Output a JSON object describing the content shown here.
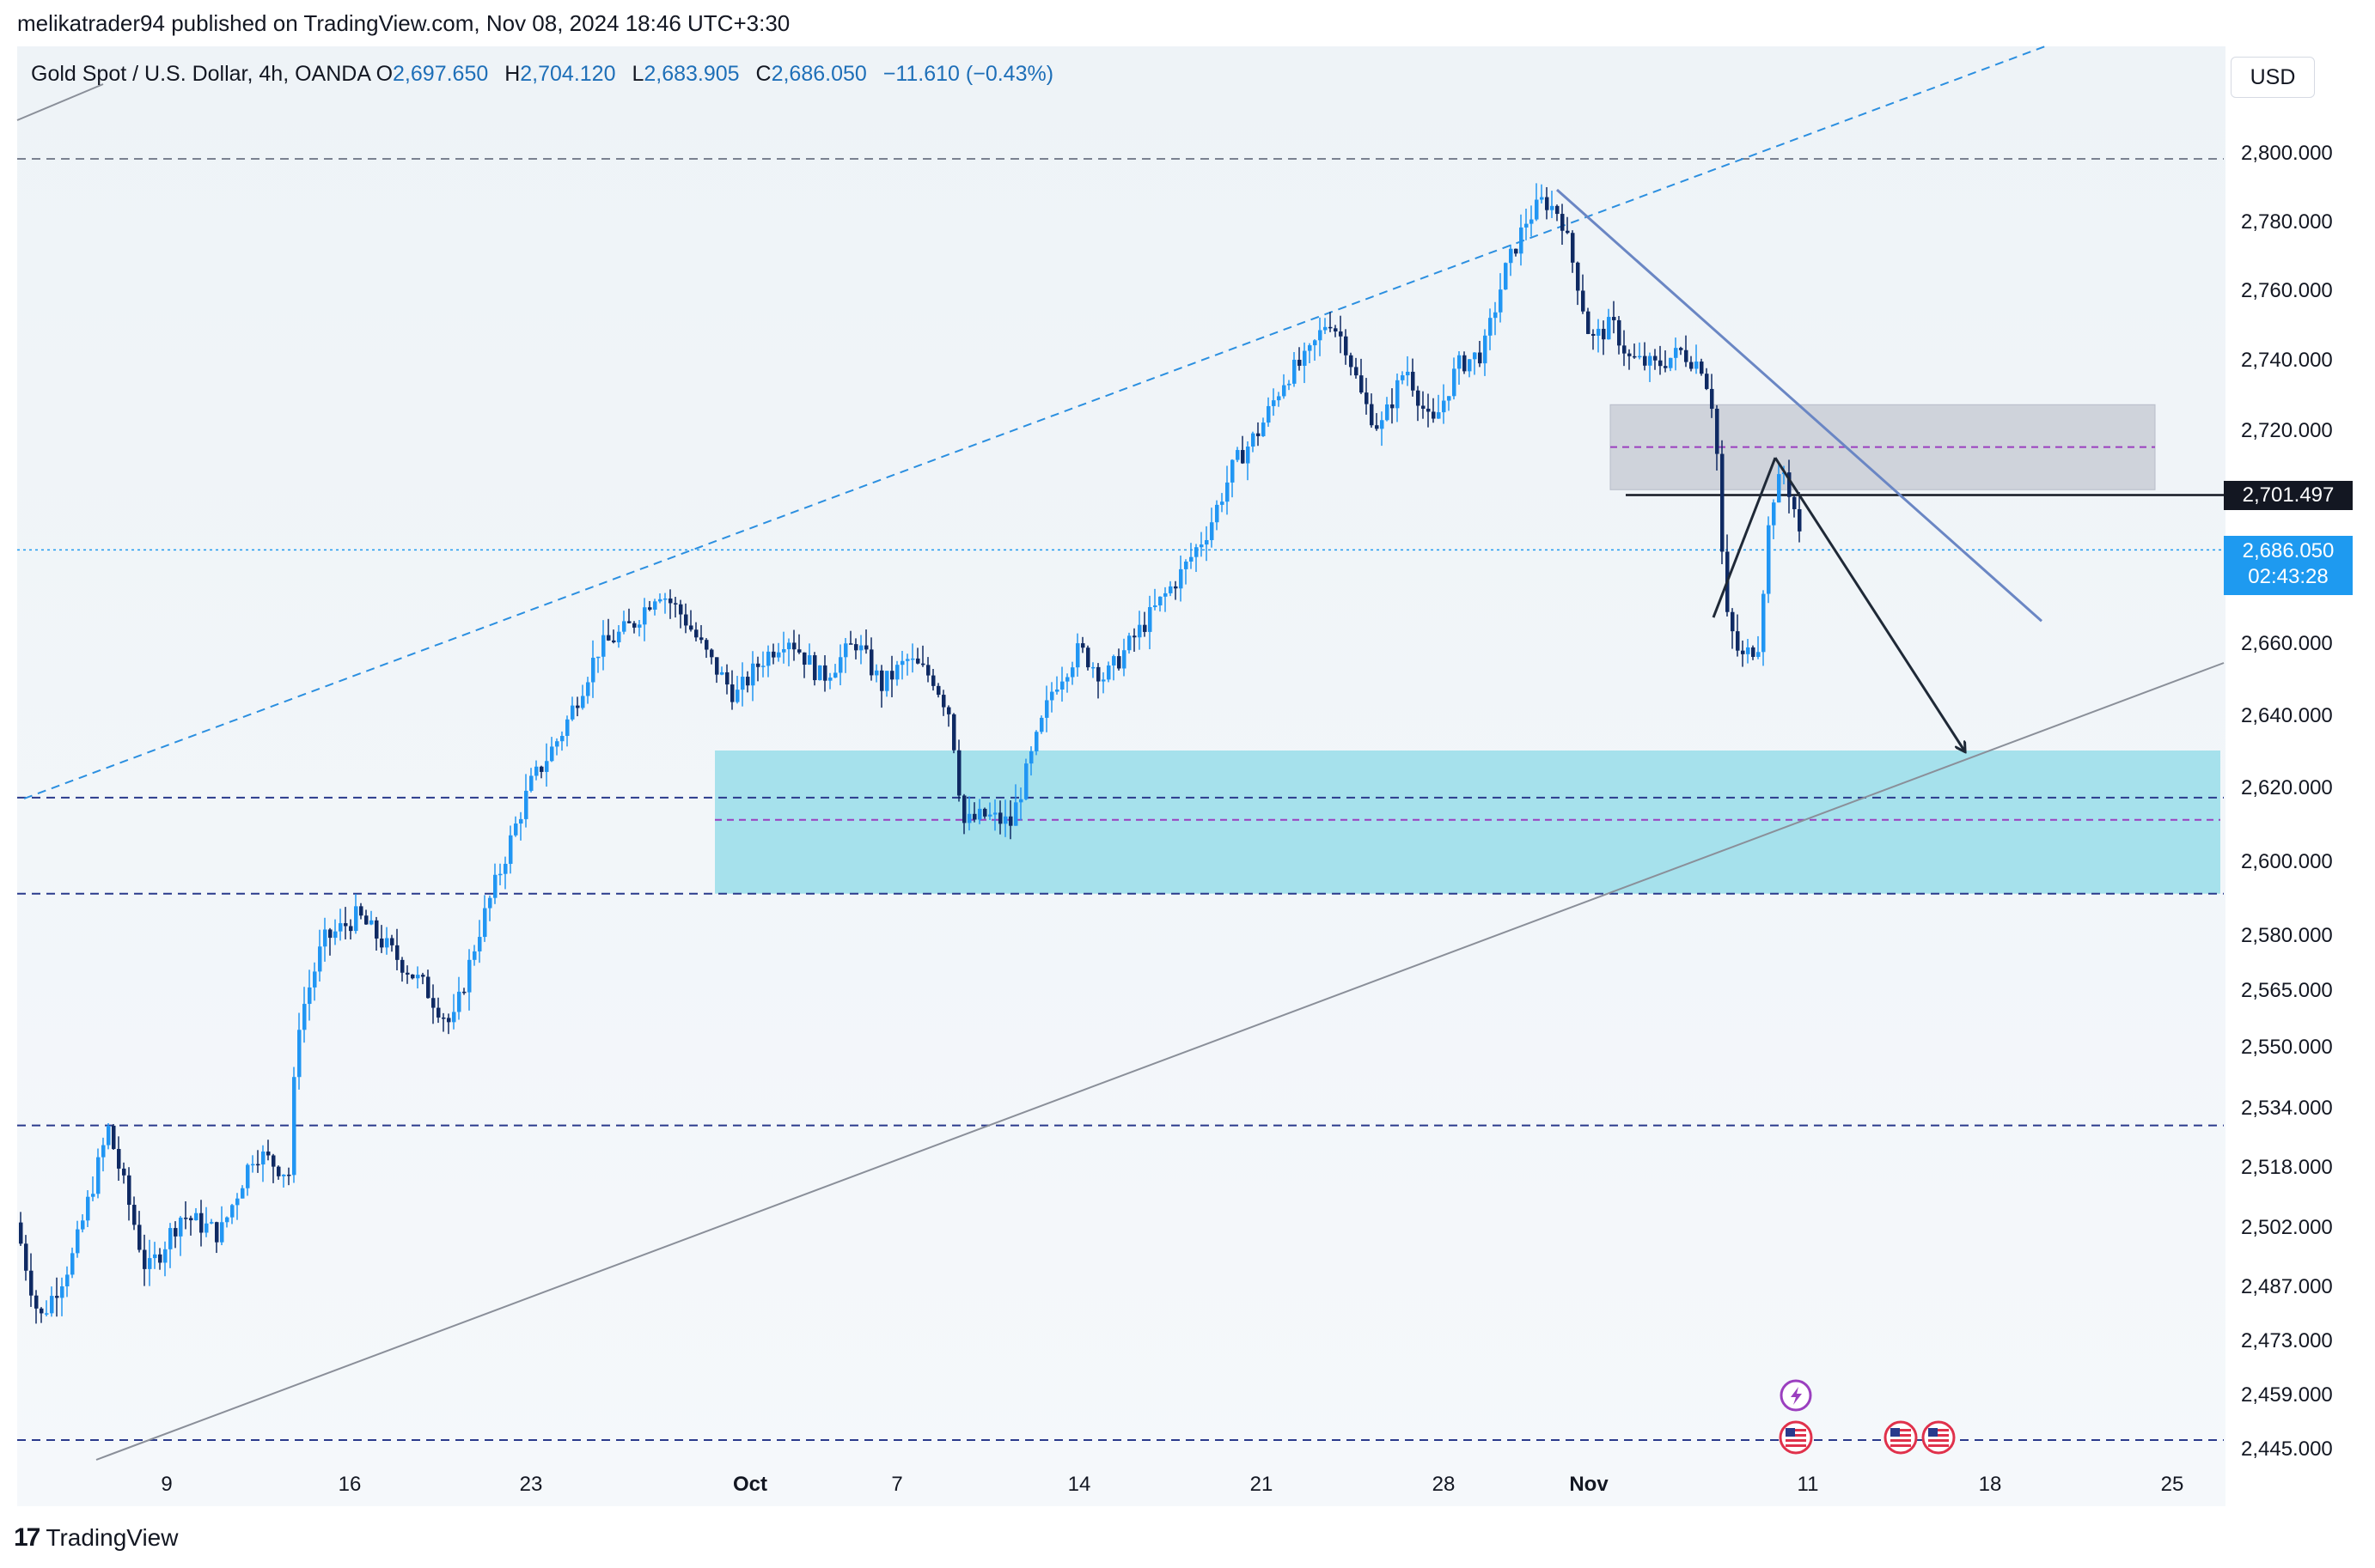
{
  "header": {
    "publisher_text": "melikatrader94 published on TradingView.com, Nov 08, 2024 18:46 UTC+3:30"
  },
  "legend": {
    "symbol": "Gold Spot / U.S. Dollar, 4h, OANDA",
    "o_label": "O",
    "o_value": "2,697.650",
    "h_label": "H",
    "h_value": "2,704.120",
    "l_label": "L",
    "l_value": "2,683.905",
    "c_label": "C",
    "c_value": "2,686.050",
    "change": "−11.610 (−0.43%)"
  },
  "currency": "USD",
  "footer": {
    "brand": "TradingView",
    "logo_mark": "17"
  },
  "colors": {
    "up": "#2196f3",
    "down": "#0f2a63",
    "support_zone": "#a6e1ec",
    "resistance_zone": "#c9cdd6",
    "trendline": "#6a86c4",
    "arrow": "#1f2937",
    "current_price_bg": "#1e9af0",
    "level_price_bg": "#131722"
  },
  "price_tags": {
    "level": {
      "value": "2,701.497"
    },
    "current": {
      "value": "2,686.050",
      "countdown": "02:43:28"
    }
  },
  "chart_data": {
    "type": "candlestick",
    "title": "Gold Spot / U.S. Dollar, 4h, OANDA",
    "timeframe": "4h",
    "y_axis": {
      "position": "right",
      "ticks": [
        "2,800.000",
        "2,780.000",
        "2,760.000",
        "2,740.000",
        "2,720.000",
        "2,660.000",
        "2,640.000",
        "2,620.000",
        "2,600.000",
        "2,580.000",
        "2,565.000",
        "2,550.000",
        "2,534.000",
        "2,518.000",
        "2,502.000",
        "2,487.000",
        "2,473.000",
        "2,459.000",
        "2,445.000"
      ]
    },
    "x_axis": {
      "ticks": [
        "9",
        "16",
        "23",
        "Oct",
        "7",
        "14",
        "21",
        "28",
        "Nov",
        "11",
        "18",
        "25"
      ]
    },
    "levels_dashed": [
      2798,
      2617,
      2591,
      2529,
      2447
    ],
    "zones": [
      {
        "name": "support",
        "from": 2591,
        "to": 2630,
        "mid": 2611
      },
      {
        "name": "resistance",
        "from": 2703,
        "to": 2727,
        "mid": 2715
      }
    ],
    "horizontal_line": 2701.497,
    "current_price": 2686.05,
    "events": [
      "lightning",
      "us-flag",
      "us-flag",
      "us-flag"
    ]
  }
}
